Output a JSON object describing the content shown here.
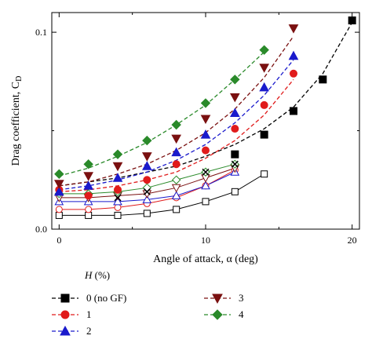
{
  "chart_data": {
    "type": "line",
    "xlabel": "Angle of attack, α (deg)",
    "ylabel": "Drag coefficient, C",
    "ylabel_sub": "D",
    "xlim": [
      -0.5,
      20.5
    ],
    "ylim": [
      0.0,
      0.11
    ],
    "x_ticks": [
      "0",
      "10",
      "20"
    ],
    "y_ticks": [
      "0.0",
      "0.1"
    ],
    "grid": false,
    "legend_title": "H (%)",
    "legend_title_letter": "H",
    "legend_title_rest": " (%)",
    "series": [
      {
        "name": "0 (no GF)",
        "color": "#000000",
        "marker": "square",
        "fit": {
          "x": [
            0,
            2,
            4,
            6,
            8,
            10,
            12,
            14,
            16,
            18,
            20
          ],
          "y": [
            0.022,
            0.024,
            0.026,
            0.029,
            0.032,
            0.037,
            0.043,
            0.051,
            0.062,
            0.079,
            0.105
          ]
        },
        "points": {
          "x": [
            12,
            14,
            16,
            18,
            20
          ],
          "y": [
            0.038,
            0.048,
            0.06,
            0.076,
            0.106
          ]
        }
      },
      {
        "name": "1",
        "color": "#e01b1b",
        "marker": "circle",
        "fit": {
          "x": [
            0,
            2,
            4,
            6,
            8,
            10,
            12,
            14,
            16
          ],
          "y": [
            0.019,
            0.02,
            0.022,
            0.025,
            0.029,
            0.036,
            0.045,
            0.058,
            0.076
          ]
        },
        "points": {
          "x": [
            0,
            2,
            4,
            6,
            8,
            10,
            12,
            14,
            16
          ],
          "y": [
            0.02,
            0.017,
            0.02,
            0.025,
            0.033,
            0.04,
            0.051,
            0.063,
            0.079
          ]
        }
      },
      {
        "name": "2",
        "color": "#1a1acc",
        "marker": "triangle-up",
        "fit": {
          "x": [
            0,
            2,
            4,
            6,
            8,
            10,
            12,
            14,
            16
          ],
          "y": [
            0.02,
            0.022,
            0.025,
            0.029,
            0.035,
            0.043,
            0.054,
            0.068,
            0.086
          ]
        },
        "points": {
          "x": [
            0,
            2,
            4,
            6,
            8,
            10,
            12,
            14,
            16
          ],
          "y": [
            0.019,
            0.022,
            0.026,
            0.032,
            0.039,
            0.048,
            0.059,
            0.072,
            0.088
          ]
        }
      },
      {
        "name": "3",
        "color": "#7a1010",
        "marker": "triangle-down",
        "fit": {
          "x": [
            0,
            2,
            4,
            6,
            8,
            10,
            12,
            14,
            16
          ],
          "y": [
            0.022,
            0.024,
            0.028,
            0.033,
            0.04,
            0.049,
            0.061,
            0.077,
            0.098
          ]
        },
        "points": {
          "x": [
            0,
            2,
            4,
            6,
            8,
            10,
            12,
            14,
            16
          ],
          "y": [
            0.023,
            0.027,
            0.032,
            0.037,
            0.046,
            0.056,
            0.067,
            0.082,
            0.102
          ]
        }
      },
      {
        "name": "4",
        "color": "#2a8a2a",
        "marker": "diamond",
        "fit": {
          "x": [
            0,
            2,
            4,
            6,
            8,
            10,
            12,
            14
          ],
          "y": [
            0.027,
            0.031,
            0.037,
            0.044,
            0.053,
            0.063,
            0.076,
            0.09
          ]
        },
        "points": {
          "x": [
            0,
            2,
            4,
            6,
            8,
            10,
            12,
            14
          ],
          "y": [
            0.028,
            0.033,
            0.038,
            0.045,
            0.053,
            0.064,
            0.076,
            0.091
          ]
        }
      }
    ],
    "open_series": [
      {
        "name": "0 (no GF)",
        "color": "#000000",
        "marker": "square",
        "x": [
          0,
          2,
          4,
          6,
          8,
          10,
          12,
          14
        ],
        "y": [
          0.007,
          0.007,
          0.007,
          0.008,
          0.01,
          0.014,
          0.019,
          0.028
        ]
      },
      {
        "name": "1",
        "color": "#e01b1b",
        "marker": "circle",
        "x": [
          0,
          2,
          4,
          6,
          8,
          10,
          12
        ],
        "y": [
          0.01,
          0.01,
          0.011,
          0.013,
          0.016,
          0.022,
          0.03
        ]
      },
      {
        "name": "2",
        "color": "#1a1acc",
        "marker": "triangle-up",
        "x": [
          0,
          2,
          4,
          6,
          8,
          10,
          12
        ],
        "y": [
          0.014,
          0.014,
          0.014,
          0.015,
          0.017,
          0.022,
          0.029
        ]
      },
      {
        "name": "3",
        "color": "#7a1010",
        "marker": "triangle-down",
        "x": [
          0,
          2,
          4,
          6,
          8,
          10,
          12
        ],
        "y": [
          0.016,
          0.016,
          0.017,
          0.018,
          0.021,
          0.026,
          0.031
        ]
      },
      {
        "name": "4",
        "color": "#2a8a2a",
        "marker": "diamond",
        "x": [
          0,
          2,
          4,
          6,
          8,
          10,
          12
        ],
        "y": [
          0.018,
          0.018,
          0.019,
          0.021,
          0.025,
          0.029,
          0.033
        ]
      }
    ],
    "cross_markers": {
      "color": "#000000",
      "x": [
        4,
        6,
        10,
        12
      ],
      "y": [
        0.016,
        0.019,
        0.029,
        0.033
      ]
    }
  }
}
